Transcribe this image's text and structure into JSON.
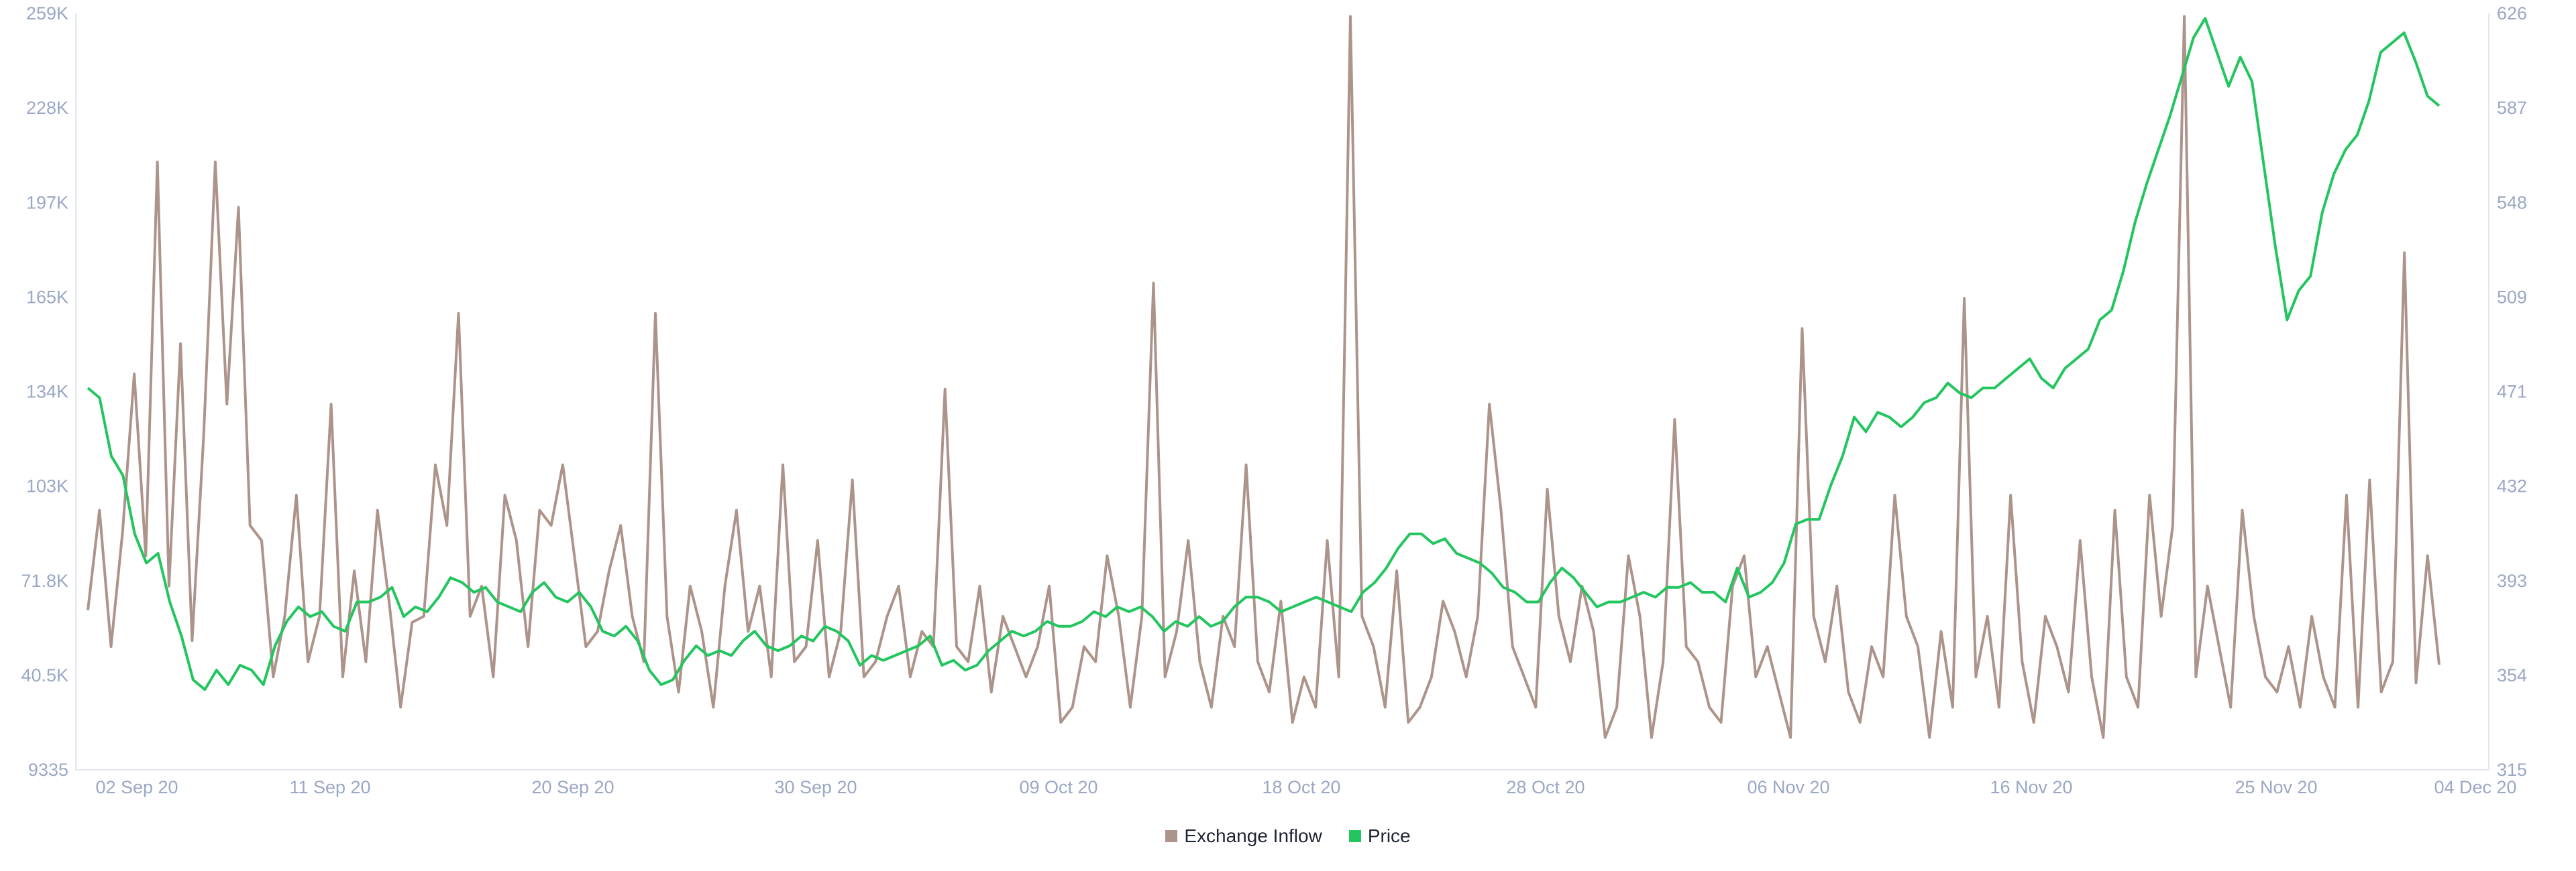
{
  "chart_data": {
    "type": "line",
    "title": "",
    "xlabel": "",
    "ylabel_left": "Exchange Inflow",
    "ylabel_right": "Price",
    "x_tick_labels": [
      "02 Sep 20",
      "11 Sep 20",
      "20 Sep 20",
      "30 Sep 20",
      "09 Oct 20",
      "18 Oct 20",
      "28 Oct 20",
      "06 Nov 20",
      "16 Nov 20",
      "25 Nov 20",
      "04 Dec 20"
    ],
    "y_left_ticks": [
      "259K",
      "228K",
      "197K",
      "165K",
      "134K",
      "103K",
      "71.8K",
      "40.5K",
      "9335"
    ],
    "y_right_ticks": [
      "626",
      "587",
      "548",
      "509",
      "471",
      "432",
      "393",
      "354",
      "315"
    ],
    "ylim_left": [
      9335,
      259000
    ],
    "ylim_right": [
      315,
      626
    ],
    "grid": false,
    "legend_position": "bottom-center",
    "series": [
      {
        "name": "Exchange Inflow",
        "axis": "left",
        "color": "#ad948a",
        "values": [
          62000,
          95000,
          50000,
          88000,
          140000,
          80000,
          210000,
          70000,
          150000,
          52000,
          120000,
          210000,
          130000,
          195000,
          90000,
          85000,
          40000,
          60000,
          100000,
          45000,
          60000,
          130000,
          40000,
          75000,
          45000,
          95000,
          65000,
          30000,
          58000,
          60000,
          110000,
          90000,
          160000,
          60000,
          70000,
          40000,
          100000,
          85000,
          50000,
          95000,
          90000,
          110000,
          80000,
          50000,
          55000,
          75000,
          90000,
          60000,
          45000,
          160000,
          60000,
          35000,
          70000,
          55000,
          30000,
          70000,
          95000,
          55000,
          70000,
          40000,
          110000,
          45000,
          50000,
          85000,
          40000,
          55000,
          105000,
          40000,
          45000,
          60000,
          70000,
          40000,
          55000,
          50000,
          135000,
          50000,
          45000,
          70000,
          35000,
          60000,
          50000,
          40000,
          50000,
          70000,
          25000,
          30000,
          50000,
          45000,
          80000,
          60000,
          30000,
          60000,
          170000,
          40000,
          55000,
          85000,
          45000,
          30000,
          60000,
          50000,
          110000,
          45000,
          35000,
          65000,
          25000,
          40000,
          30000,
          85000,
          40000,
          258000,
          60000,
          50000,
          30000,
          75000,
          25000,
          30000,
          40000,
          65000,
          55000,
          40000,
          60000,
          130000,
          95000,
          50000,
          40000,
          30000,
          102000,
          60000,
          45000,
          70000,
          55000,
          20000,
          30000,
          80000,
          60000,
          20000,
          45000,
          125000,
          50000,
          45000,
          30000,
          25000,
          70000,
          80000,
          40000,
          50000,
          35000,
          20000,
          155000,
          60000,
          45000,
          70000,
          35000,
          25000,
          50000,
          40000,
          100000,
          60000,
          50000,
          20000,
          55000,
          30000,
          165000,
          40000,
          60000,
          30000,
          100000,
          45000,
          25000,
          60000,
          50000,
          35000,
          85000,
          40000,
          20000,
          95000,
          40000,
          30000,
          100000,
          60000,
          90000,
          258000,
          40000,
          70000,
          50000,
          30000,
          95000,
          60000,
          40000,
          35000,
          50000,
          30000,
          60000,
          40000,
          30000,
          100000,
          30000,
          105000,
          35000,
          45000,
          180000,
          38000,
          80000,
          44000
        ]
      },
      {
        "name": "Price",
        "axis": "right",
        "color": "#22c55e",
        "values": [
          472,
          468,
          444,
          436,
          412,
          400,
          404,
          384,
          370,
          352,
          348,
          356,
          350,
          358,
          356,
          350,
          366,
          376,
          382,
          378,
          380,
          374,
          372,
          384,
          384,
          386,
          390,
          378,
          382,
          380,
          386,
          394,
          392,
          388,
          390,
          384,
          382,
          380,
          388,
          392,
          386,
          384,
          388,
          382,
          372,
          370,
          374,
          368,
          356,
          350,
          352,
          360,
          366,
          362,
          364,
          362,
          368,
          372,
          366,
          364,
          366,
          370,
          368,
          374,
          372,
          368,
          358,
          362,
          360,
          362,
          364,
          366,
          370,
          358,
          360,
          356,
          358,
          364,
          368,
          372,
          370,
          372,
          376,
          374,
          374,
          376,
          380,
          378,
          382,
          380,
          382,
          378,
          372,
          376,
          374,
          378,
          374,
          376,
          382,
          386,
          386,
          384,
          380,
          382,
          384,
          386,
          384,
          382,
          380,
          388,
          392,
          398,
          406,
          412,
          412,
          408,
          410,
          404,
          402,
          400,
          396,
          390,
          388,
          384,
          384,
          392,
          398,
          394,
          388,
          382,
          384,
          384,
          386,
          388,
          386,
          390,
          390,
          392,
          388,
          388,
          384,
          398,
          386,
          388,
          392,
          400,
          416,
          418,
          418,
          432,
          444,
          460,
          454,
          462,
          460,
          456,
          460,
          466,
          468,
          474,
          470,
          468,
          472,
          472,
          476,
          480,
          484,
          476,
          472,
          480,
          484,
          488,
          500,
          504,
          520,
          540,
          556,
          570,
          584,
          600,
          616,
          624,
          610,
          596,
          608,
          598,
          564,
          530,
          500,
          512,
          518,
          544,
          560,
          570,
          576,
          590,
          610,
          614,
          618,
          606,
          592,
          588
        ]
      }
    ]
  },
  "legend": {
    "items": [
      {
        "label": "Exchange Inflow",
        "color": "#ad948a"
      },
      {
        "label": "Price",
        "color": "#22c55e"
      }
    ]
  }
}
